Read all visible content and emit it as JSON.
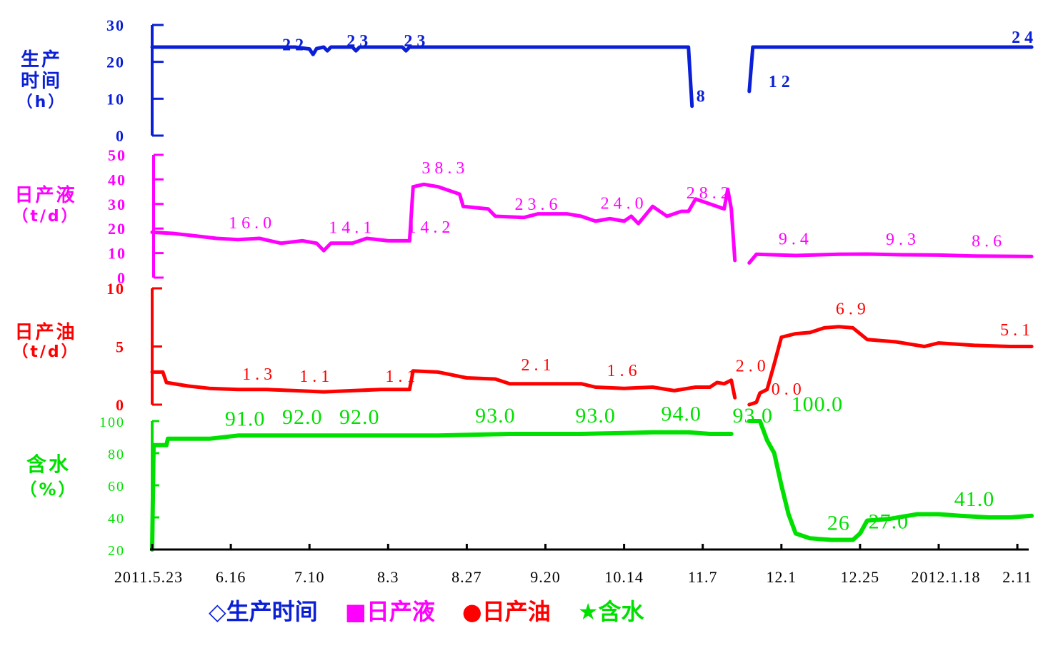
{
  "chart_data": {
    "type": "line",
    "x_ticks": [
      "2011.5.23",
      "6.16",
      "7.10",
      "8.3",
      "8.27",
      "9.20",
      "10.14",
      "11.7",
      "12.1",
      "12.25",
      "2012.1.18",
      "2.11"
    ],
    "legend": [
      {
        "marker": "◇",
        "label": "生产时间",
        "color": "#0a1fd6"
      },
      {
        "marker": "■",
        "label": "日产液",
        "color": "#ff00ff"
      },
      {
        "marker": "●",
        "label": "日产油",
        "color": "#ff0000"
      },
      {
        "marker": "★",
        "label": "含水",
        "color": "#00e000"
      }
    ],
    "panels": [
      {
        "name": "生产时间",
        "ylabel": [
          "生产",
          "时间",
          "（h）"
        ],
        "color": "#0a1fd6",
        "ylim": [
          0,
          30
        ],
        "yticks": [
          "30",
          "20",
          "10",
          "0"
        ],
        "segments": [
          [
            [
              0,
              24
            ],
            [
              10,
              24
            ],
            [
              20,
              24
            ],
            [
              22,
              23.5
            ],
            [
              22.5,
              22
            ],
            [
              23,
              23.6
            ],
            [
              24,
              24
            ],
            [
              24.5,
              23
            ],
            [
              25,
              24
            ],
            [
              28,
              24
            ],
            [
              28.5,
              23
            ],
            [
              29,
              24
            ],
            [
              35,
              24
            ],
            [
              35.5,
              23
            ],
            [
              36,
              24
            ],
            [
              50,
              24
            ],
            [
              75,
              24
            ],
            [
              75.5,
              8
            ]
          ],
          [
            [
              83.5,
              12
            ],
            [
              84,
              24
            ],
            [
              100,
              24
            ],
            [
              123,
              24
            ]
          ]
        ],
        "annotations": [
          {
            "x": 20,
            "y": 22,
            "text": "22"
          },
          {
            "x": 29,
            "y": 23,
            "text": "23"
          },
          {
            "x": 37,
            "y": 23,
            "text": "23"
          },
          {
            "x": 77,
            "y": 8,
            "text": "8"
          },
          {
            "x": 88,
            "y": 12,
            "text": "12"
          },
          {
            "x": 122,
            "y": 24,
            "text": "24"
          }
        ]
      },
      {
        "name": "日产液",
        "ylabel": [
          "日产液",
          "（t/d）"
        ],
        "color": "#ff00ff",
        "ylim": [
          0,
          50
        ],
        "yticks": [
          "50",
          "40",
          "30",
          "20",
          "10",
          "0"
        ],
        "segments": [
          [
            [
              0,
              18.5
            ],
            [
              3,
              18
            ],
            [
              6,
              17
            ],
            [
              9,
              16
            ],
            [
              12,
              15.5
            ],
            [
              15,
              16
            ],
            [
              18,
              14
            ],
            [
              21,
              15
            ],
            [
              23,
              14
            ],
            [
              24,
              11
            ],
            [
              25,
              14
            ],
            [
              28,
              14
            ],
            [
              30,
              16
            ],
            [
              33,
              15
            ],
            [
              35,
              15
            ],
            [
              36,
              15
            ],
            [
              36.5,
              37
            ],
            [
              38,
              38
            ],
            [
              40,
              37
            ],
            [
              42,
              35
            ],
            [
              43,
              34
            ],
            [
              43.5,
              29
            ],
            [
              47,
              28
            ],
            [
              48,
              25
            ],
            [
              52,
              24.5
            ],
            [
              54,
              26
            ],
            [
              58,
              26
            ],
            [
              60,
              25
            ],
            [
              62,
              23
            ],
            [
              64,
              24
            ],
            [
              66,
              23
            ],
            [
              67,
              25
            ],
            [
              68,
              22
            ],
            [
              70,
              29
            ],
            [
              72,
              25
            ],
            [
              74,
              27
            ],
            [
              75,
              27
            ],
            [
              76,
              32
            ],
            [
              78,
              30
            ],
            [
              80,
              28
            ],
            [
              80.5,
              36
            ],
            [
              81,
              28
            ],
            [
              81.5,
              7
            ]
          ],
          [
            [
              83.5,
              6
            ],
            [
              84.5,
              9.5
            ],
            [
              90,
              9
            ],
            [
              96,
              9.5
            ],
            [
              100,
              9.6
            ],
            [
              105,
              9.3
            ],
            [
              110,
              9.2
            ],
            [
              115,
              8.8
            ],
            [
              123,
              8.6
            ]
          ]
        ],
        "annotations": [
          {
            "x": 14,
            "y": 16.0,
            "text": "16.0"
          },
          {
            "x": 28,
            "y": 14.1,
            "text": "14.1"
          },
          {
            "x": 41,
            "y": 38.3,
            "text": "38.3"
          },
          {
            "x": 39,
            "y": 14.2,
            "text": "14.2"
          },
          {
            "x": 54,
            "y": 23.6,
            "text": "23.6"
          },
          {
            "x": 66,
            "y": 24.0,
            "text": "24.0"
          },
          {
            "x": 78,
            "y": 28.2,
            "text": "28.2"
          },
          {
            "x": 90,
            "y": 9.4,
            "text": "9.4"
          },
          {
            "x": 105,
            "y": 9.3,
            "text": "9.3"
          },
          {
            "x": 117,
            "y": 8.6,
            "text": "8.6"
          }
        ]
      },
      {
        "name": "日产油",
        "ylabel": [
          "日产油",
          "（t/d）"
        ],
        "color": "#ff0000",
        "ylim": [
          0,
          10
        ],
        "yticks": [
          "10",
          "5",
          "0"
        ],
        "segments": [
          [
            [
              0,
              2.8
            ],
            [
              1.5,
              2.8
            ],
            [
              2,
              1.9
            ],
            [
              5,
              1.6
            ],
            [
              8,
              1.4
            ],
            [
              12,
              1.3
            ],
            [
              16,
              1.3
            ],
            [
              20,
              1.2
            ],
            [
              24,
              1.1
            ],
            [
              28,
              1.2
            ],
            [
              32,
              1.3
            ],
            [
              36,
              1.3
            ],
            [
              36.5,
              2.9
            ],
            [
              40,
              2.8
            ],
            [
              44,
              2.3
            ],
            [
              48,
              2.2
            ],
            [
              50,
              1.8
            ],
            [
              55,
              1.8
            ],
            [
              60,
              1.8
            ],
            [
              62,
              1.5
            ],
            [
              66,
              1.4
            ],
            [
              70,
              1.5
            ],
            [
              73,
              1.2
            ],
            [
              76,
              1.5
            ],
            [
              78,
              1.5
            ],
            [
              79,
              1.9
            ],
            [
              80,
              1.8
            ],
            [
              81,
              2.1
            ],
            [
              81.5,
              0.6
            ]
          ],
          [
            [
              83.5,
              0
            ],
            [
              84.5,
              0.2
            ],
            [
              85,
              1.0
            ],
            [
              86,
              1.3
            ],
            [
              87,
              3.5
            ],
            [
              88,
              5.8
            ],
            [
              90,
              6.1
            ],
            [
              92,
              6.2
            ],
            [
              94,
              6.6
            ],
            [
              96,
              6.7
            ],
            [
              98,
              6.6
            ],
            [
              100,
              5.6
            ],
            [
              104,
              5.4
            ],
            [
              108,
              5.0
            ],
            [
              110,
              5.3
            ],
            [
              115,
              5.1
            ],
            [
              120,
              5.0
            ],
            [
              123,
              5.0
            ]
          ]
        ],
        "annotations": [
          {
            "x": 15,
            "y": 1.3,
            "text": "1.3"
          },
          {
            "x": 23,
            "y": 1.1,
            "text": "1.1"
          },
          {
            "x": 35,
            "y": 1.1,
            "text": "1.1"
          },
          {
            "x": 54,
            "y": 2.1,
            "text": "2.1"
          },
          {
            "x": 66,
            "y": 1.6,
            "text": "1.6"
          },
          {
            "x": 84,
            "y": 2.0,
            "text": "2.0"
          },
          {
            "x": 89,
            "y": 0.0,
            "text": "0.0"
          },
          {
            "x": 98,
            "y": 6.9,
            "text": "6.9"
          },
          {
            "x": 121,
            "y": 5.1,
            "text": "5.1"
          }
        ]
      },
      {
        "name": "含水",
        "ylabel": [
          "含水",
          "（%）"
        ],
        "color": "#00e000",
        "ylim": [
          20,
          100
        ],
        "yticks": [
          "100",
          "80",
          "60",
          "40",
          "20"
        ],
        "segments": [
          [
            [
              0,
              20
            ],
            [
              0.2,
              85
            ],
            [
              2,
              85
            ],
            [
              2.2,
              89
            ],
            [
              8,
              89
            ],
            [
              12,
              91
            ],
            [
              20,
              91
            ],
            [
              30,
              91
            ],
            [
              40,
              91
            ],
            [
              50,
              92
            ],
            [
              60,
              92
            ],
            [
              70,
              93
            ],
            [
              75,
              93
            ],
            [
              78,
              92
            ],
            [
              81,
              92
            ]
          ],
          [
            [
              83.5,
              100
            ],
            [
              85,
              100
            ],
            [
              86,
              88
            ],
            [
              87,
              80
            ],
            [
              88,
              60
            ],
            [
              89,
              42
            ],
            [
              90,
              30
            ],
            [
              92,
              27
            ],
            [
              95,
              26
            ],
            [
              98,
              26
            ],
            [
              99,
              30
            ],
            [
              100,
              38
            ],
            [
              103,
              39
            ],
            [
              107,
              42
            ],
            [
              110,
              42
            ],
            [
              113,
              41
            ],
            [
              117,
              40
            ],
            [
              120,
              40
            ],
            [
              123,
              41
            ]
          ]
        ],
        "annotations": [
          {
            "x": 13,
            "y": 91.0,
            "text": "91.0"
          },
          {
            "x": 21,
            "y": 92.0,
            "text": "92.0"
          },
          {
            "x": 29,
            "y": 92.0,
            "text": "92.0"
          },
          {
            "x": 48,
            "y": 93.0,
            "text": "93.0"
          },
          {
            "x": 62,
            "y": 93.0,
            "text": "93.0"
          },
          {
            "x": 74,
            "y": 94.0,
            "text": "94.0"
          },
          {
            "x": 84,
            "y": 93.0,
            "text": "93.0"
          },
          {
            "x": 93,
            "y": 100.0,
            "text": "100.0"
          },
          {
            "x": 96,
            "y": 26,
            "text": "26"
          },
          {
            "x": 103,
            "y": 27.0,
            "text": "27.0"
          },
          {
            "x": 115,
            "y": 41.0,
            "text": "41.0"
          }
        ]
      }
    ]
  }
}
